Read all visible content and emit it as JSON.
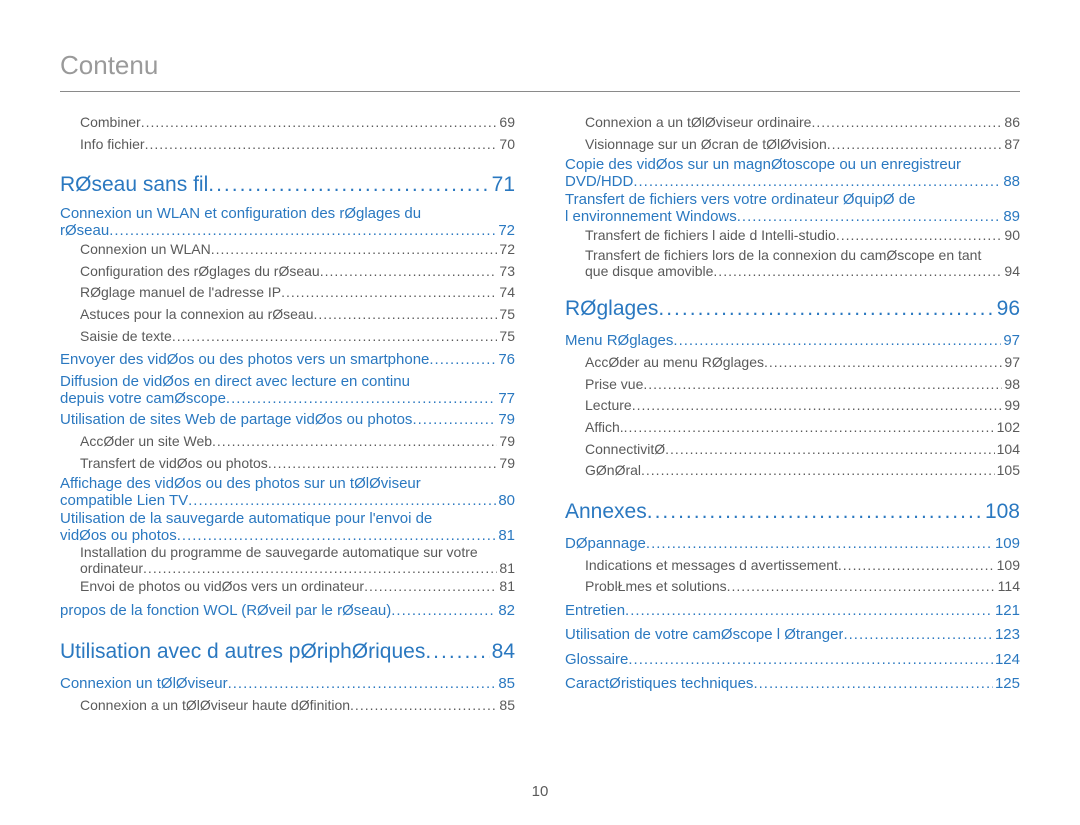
{
  "title": "Contenu",
  "page_number": "10",
  "colors": {
    "link": "#2a78c0",
    "text": "#5a5a5a",
    "title": "#9a9a9a",
    "rule": "#8a8a8a",
    "background": "#ffffff"
  },
  "left": {
    "pre_subs": [
      {
        "label": "Combiner",
        "pg": "69"
      },
      {
        "label": "Info fichier",
        "pg": "70"
      }
    ],
    "chap1": {
      "label": "RØseau sans fil",
      "pg": "71"
    },
    "s1": {
      "line1": "Connexion   un WLAN et configuration des rØglages du",
      "line2": "rØseau",
      "pg": "72"
    },
    "s1_subs": [
      {
        "label": "Connexion   un WLAN",
        "pg": "72"
      },
      {
        "label": "Configuration des rØglages du rØseau",
        "pg": "73"
      },
      {
        "label": "RØglage manuel de l'adresse IP",
        "pg": "74"
      },
      {
        "label": "Astuces pour la connexion au rØseau",
        "pg": "75"
      },
      {
        "label": "Saisie de texte",
        "pg": "75"
      }
    ],
    "s2": {
      "label": "Envoyer des vidØos ou des photos vers un smartphone",
      "pg": "76"
    },
    "s3": {
      "line1": "Diffusion de vidØos en direct avec lecture en continu",
      "line2": "depuis votre camØscope",
      "pg": "77"
    },
    "s4": {
      "label": "Utilisation de sites Web de partage vidØos ou photos",
      "pg": "79"
    },
    "s4_subs": [
      {
        "label": "AccØder   un site Web",
        "pg": "79"
      },
      {
        "label": "Transfert de vidØos ou photos",
        "pg": "79"
      }
    ],
    "s5": {
      "line1": "Affichage des vidØos ou des photos sur un tØlØviseur",
      "line2": "compatible Lien TV",
      "pg": "80"
    },
    "s6": {
      "line1": "Utilisation de la sauvegarde automatique pour l'envoi de",
      "line2": "vidØos ou photos",
      "pg": "81"
    },
    "s6_subs": [
      {
        "line1": "Installation du programme de sauvegarde automatique sur votre",
        "line2": "ordinateur",
        "pg": "81"
      },
      {
        "label": "Envoi de photos ou vidØos vers un ordinateur",
        "pg": "81"
      }
    ],
    "s7": {
      "label": "  propos de la fonction WOL (RØveil par le rØseau)",
      "pg": "82"
    },
    "chap2": {
      "label": "Utilisation avec d autres pØriphØriques",
      "pg": "84"
    },
    "s8": {
      "label": "Connexion   un tØlØviseur",
      "pg": "85"
    },
    "s8_subs": [
      {
        "label": "Connexion a un tØlØviseur haute dØfinition",
        "pg": "85"
      }
    ]
  },
  "right": {
    "pre_subs": [
      {
        "label": "Connexion a un tØlØviseur ordinaire",
        "pg": "86"
      },
      {
        "label": "Visionnage sur un Øcran de tØlØvision",
        "pg": "87"
      }
    ],
    "s1": {
      "line1": "Copie des vidØos sur un magnØtoscope ou un enregistreur",
      "line2": "DVD/HDD",
      "pg": "88"
    },
    "s2": {
      "line1": "Transfert de fichiers vers votre ordinateur ØquipØ de",
      "line2": "l environnement Windows",
      "pg": "89"
    },
    "s2_subs": [
      {
        "label": "Transfert de fichiers   l aide d Intelli-studio",
        "pg": "90"
      },
      {
        "line1": "Transfert de fichiers lors de la connexion du camØscope en tant",
        "line2": "que disque amovible",
        "pg": "94"
      }
    ],
    "chap1": {
      "label": "RØglages",
      "pg": "96"
    },
    "s3": {
      "label": "Menu RØglages",
      "pg": "97"
    },
    "s3_subs": [
      {
        "label": "AccØder au menu RØglages",
        "pg": "97"
      },
      {
        "label": "Prise vue",
        "pg": "98"
      },
      {
        "label": "Lecture",
        "pg": "99"
      },
      {
        "label": "Affich.",
        "pg": "102"
      },
      {
        "label": "ConnectivitØ",
        "pg": "104"
      },
      {
        "label": "GØnØral",
        "pg": "105"
      }
    ],
    "chap2": {
      "label": "Annexes",
      "pg": "108"
    },
    "s4": {
      "label": "DØpannage",
      "pg": "109"
    },
    "s4_subs": [
      {
        "label": "Indications et messages d avertissement",
        "pg": "109"
      },
      {
        "label": "ProblŁmes et solutions",
        "pg": "114"
      }
    ],
    "s5": {
      "label": "Entretien",
      "pg": "121"
    },
    "s6": {
      "label": "Utilisation de votre camØscope   l Øtranger",
      "pg": "123"
    },
    "s7": {
      "label": "Glossaire",
      "pg": "124"
    },
    "s8": {
      "label": "CaractØristiques techniques",
      "pg": "125"
    }
  }
}
